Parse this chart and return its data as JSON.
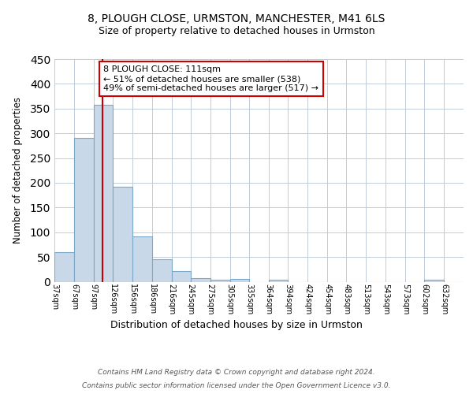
{
  "title1": "8, PLOUGH CLOSE, URMSTON, MANCHESTER, M41 6LS",
  "title2": "Size of property relative to detached houses in Urmston",
  "xlabel": "Distribution of detached houses by size in Urmston",
  "ylabel": "Number of detached properties",
  "bin_labels": [
    "37sqm",
    "67sqm",
    "97sqm",
    "126sqm",
    "156sqm",
    "186sqm",
    "216sqm",
    "245sqm",
    "275sqm",
    "305sqm",
    "335sqm",
    "364sqm",
    "394sqm",
    "424sqm",
    "454sqm",
    "483sqm",
    "513sqm",
    "543sqm",
    "573sqm",
    "602sqm",
    "632sqm"
  ],
  "bin_edges": [
    37,
    67,
    97,
    126,
    156,
    186,
    216,
    245,
    275,
    305,
    335,
    364,
    394,
    424,
    454,
    483,
    513,
    543,
    573,
    602,
    632
  ],
  "bar_heights": [
    59,
    290,
    357,
    192,
    91,
    46,
    22,
    7,
    4,
    5,
    0,
    4,
    0,
    0,
    0,
    0,
    0,
    0,
    0,
    4,
    0
  ],
  "bar_color": "#c8d8e8",
  "bar_edgecolor": "#7aa8c8",
  "property_value": 111,
  "vline_color": "#cc0000",
  "annotation_text": "8 PLOUGH CLOSE: 111sqm\n← 51% of detached houses are smaller (538)\n49% of semi-detached houses are larger (517) →",
  "annotation_box_edgecolor": "#cc0000",
  "ylim": [
    0,
    450
  ],
  "yticks": [
    0,
    50,
    100,
    150,
    200,
    250,
    300,
    350,
    400,
    450
  ],
  "footer_line1": "Contains HM Land Registry data © Crown copyright and database right 2024.",
  "footer_line2": "Contains public sector information licensed under the Open Government Licence v3.0.",
  "background_color": "#ffffff",
  "grid_color": "#c0ccd8"
}
